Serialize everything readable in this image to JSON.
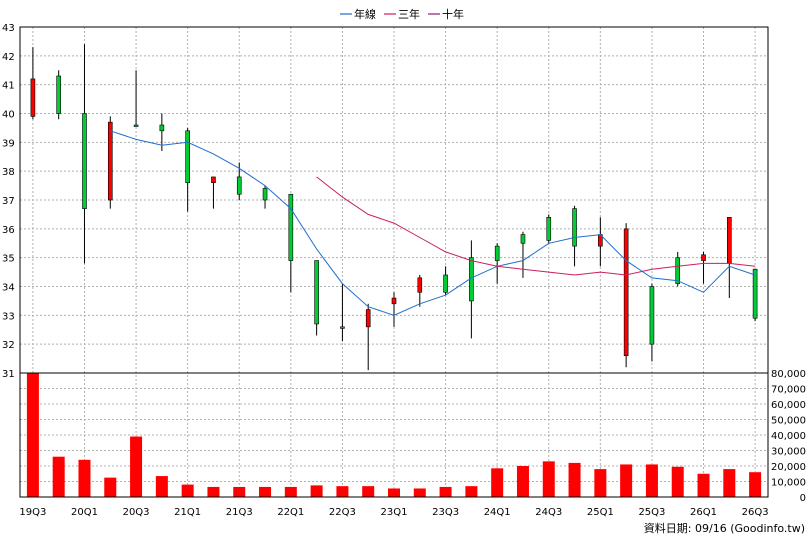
{
  "chart_data": {
    "type": "candlestick",
    "legend": [
      {
        "label": "年線",
        "color": "#1e6fd0"
      },
      {
        "label": "三年",
        "color": "#cc1f5a"
      },
      {
        "label": "十年",
        "color": "#8b1a6e"
      }
    ],
    "price_axis": {
      "min": 31,
      "max": 43,
      "ticks": [
        31,
        32,
        33,
        34,
        35,
        36,
        37,
        38,
        39,
        40,
        41,
        42,
        43
      ]
    },
    "volume_axis": {
      "min": 0,
      "max": 80000,
      "ticks": [
        "0",
        "10,000",
        "20,000",
        "30,000",
        "40,000",
        "50,000",
        "60,000",
        "70,000",
        "80,000"
      ]
    },
    "x_labels": [
      "19Q3",
      "20Q1",
      "20Q3",
      "21Q1",
      "21Q3",
      "22Q1",
      "22Q3",
      "23Q1",
      "23Q3",
      "24Q1",
      "24Q3",
      "25Q1",
      "25Q3",
      "26Q1",
      "26Q3"
    ],
    "candles": [
      {
        "o": 41.2,
        "h": 42.3,
        "l": 39.8,
        "c": 39.9,
        "v": 80000
      },
      {
        "o": 40.0,
        "h": 41.5,
        "l": 39.8,
        "c": 41.3,
        "v": 26000
      },
      {
        "o": 36.7,
        "h": 42.4,
        "l": 34.8,
        "c": 40.0,
        "v": 24000
      },
      {
        "o": 39.7,
        "h": 39.9,
        "l": 36.7,
        "c": 37.0,
        "v": 12500
      },
      {
        "o": 39.6,
        "h": 41.5,
        "l": 39.6,
        "c": 39.6,
        "v": 39000
      },
      {
        "o": 39.4,
        "h": 40.0,
        "l": 38.7,
        "c": 39.6,
        "v": 13500
      },
      {
        "o": 37.6,
        "h": 39.5,
        "l": 36.6,
        "c": 39.4,
        "v": 8000
      },
      {
        "o": 37.8,
        "h": 37.8,
        "l": 36.7,
        "c": 37.6,
        "v": 6500
      },
      {
        "o": 37.2,
        "h": 38.3,
        "l": 37.0,
        "c": 37.8,
        "v": 6500
      },
      {
        "o": 37.0,
        "h": 37.5,
        "l": 36.7,
        "c": 37.4,
        "v": 6500
      },
      {
        "o": 34.9,
        "h": 37.2,
        "l": 33.8,
        "c": 37.2,
        "v": 6500
      },
      {
        "o": 32.7,
        "h": 34.9,
        "l": 32.3,
        "c": 34.9,
        "v": 7500
      },
      {
        "o": 32.6,
        "h": 34.1,
        "l": 32.1,
        "c": 32.6,
        "v": 7000
      },
      {
        "o": 33.2,
        "h": 33.4,
        "l": 31.1,
        "c": 32.6,
        "v": 7000
      },
      {
        "o": 33.6,
        "h": 33.8,
        "l": 32.6,
        "c": 33.4,
        "v": 5500
      },
      {
        "o": 34.3,
        "h": 34.4,
        "l": 33.3,
        "c": 33.8,
        "v": 5500
      },
      {
        "o": 33.8,
        "h": 34.7,
        "l": 33.7,
        "c": 34.4,
        "v": 6500
      },
      {
        "o": 33.5,
        "h": 35.6,
        "l": 32.2,
        "c": 35.0,
        "v": 7000
      },
      {
        "o": 34.9,
        "h": 35.5,
        "l": 34.1,
        "c": 35.4,
        "v": 18500
      },
      {
        "o": 35.5,
        "h": 35.9,
        "l": 34.3,
        "c": 35.8,
        "v": 20000
      },
      {
        "o": 35.6,
        "h": 36.5,
        "l": 35.5,
        "c": 36.4,
        "v": 23000
      },
      {
        "o": 35.4,
        "h": 36.8,
        "l": 34.7,
        "c": 36.7,
        "v": 22000
      },
      {
        "o": 35.8,
        "h": 36.4,
        "l": 34.7,
        "c": 35.4,
        "v": 18000
      },
      {
        "o": 36.0,
        "h": 36.2,
        "l": 31.2,
        "c": 31.6,
        "v": 21000
      },
      {
        "o": 32.0,
        "h": 34.1,
        "l": 31.4,
        "c": 34.0,
        "v": 21000
      },
      {
        "o": 34.1,
        "h": 35.2,
        "l": 34.0,
        "c": 35.0,
        "v": 19500
      },
      {
        "o": 35.1,
        "h": 35.2,
        "l": 34.1,
        "c": 34.9,
        "v": 15000
      },
      {
        "o": 36.4,
        "h": 36.4,
        "l": 33.6,
        "c": 34.8,
        "v": 18000
      },
      {
        "o": 32.9,
        "h": 34.6,
        "l": 32.8,
        "c": 34.6,
        "v": 16000
      }
    ],
    "ma_annual": [
      null,
      null,
      null,
      39.4,
      39.1,
      38.9,
      39.0,
      38.6,
      38.1,
      37.5,
      36.7,
      35.3,
      34.1,
      33.3,
      33.0,
      33.4,
      33.7,
      34.3,
      34.7,
      34.9,
      35.5,
      35.7,
      35.8,
      34.9,
      34.3,
      34.2,
      33.8,
      34.7,
      34.4
    ],
    "ma_3y": [
      null,
      null,
      null,
      null,
      null,
      null,
      null,
      null,
      null,
      null,
      null,
      37.8,
      37.1,
      36.5,
      36.2,
      35.7,
      35.2,
      34.9,
      34.7,
      34.6,
      34.5,
      34.4,
      34.5,
      34.4,
      34.6,
      34.7,
      34.8,
      34.8,
      34.7
    ],
    "note": "資料日期: 09/16  (Goodinfo.tw)"
  }
}
